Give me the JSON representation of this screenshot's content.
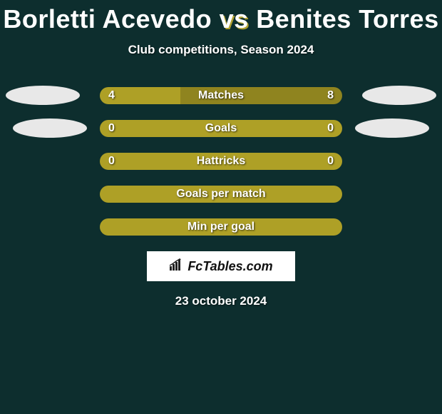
{
  "title": {
    "player1": "Borletti Acevedo",
    "vs": "vs",
    "player2": "Benites Torres"
  },
  "subtitle": "Club competitions, Season 2024",
  "colors": {
    "background": "#0d2e2e",
    "bar_olive": "#aea026",
    "bar_olive_dark": "#8f841f",
    "bar_empty": "#aea026",
    "oval": "#e8e8e8",
    "text": "#ffffff"
  },
  "rows": [
    {
      "label": "Matches",
      "left_value": "4",
      "right_value": "8",
      "left_pct": 33.3,
      "right_pct": 66.7,
      "left_color": "#aea026",
      "right_color": "#8f841f",
      "show_oval_left": true,
      "show_oval_right": true,
      "oval_left_offset": 8,
      "oval_right_offset": 8
    },
    {
      "label": "Goals",
      "left_value": "0",
      "right_value": "0",
      "left_pct": 50,
      "right_pct": 50,
      "left_color": "#aea026",
      "right_color": "#aea026",
      "show_oval_left": true,
      "show_oval_right": true,
      "oval_left_offset": 18,
      "oval_right_offset": 18
    },
    {
      "label": "Hattricks",
      "left_value": "0",
      "right_value": "0",
      "left_pct": 50,
      "right_pct": 50,
      "left_color": "#aea026",
      "right_color": "#aea026",
      "show_oval_left": false,
      "show_oval_right": false
    },
    {
      "label": "Goals per match",
      "left_value": "",
      "right_value": "",
      "left_pct": 50,
      "right_pct": 50,
      "left_color": "#aea026",
      "right_color": "#aea026",
      "show_oval_left": false,
      "show_oval_right": false
    },
    {
      "label": "Min per goal",
      "left_value": "",
      "right_value": "",
      "left_pct": 50,
      "right_pct": 50,
      "left_color": "#aea026",
      "right_color": "#aea026",
      "show_oval_left": false,
      "show_oval_right": false
    }
  ],
  "logo": "FcTables.com",
  "date": "23 october 2024"
}
